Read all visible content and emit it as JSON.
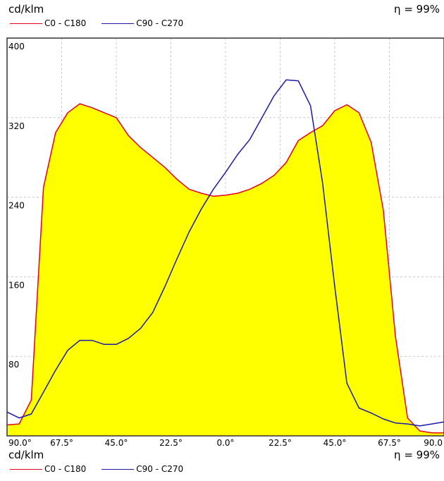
{
  "header": {
    "unit": "cd/klm",
    "efficiency": "η = 99%"
  },
  "footer": {
    "unit": "cd/klm",
    "efficiency": "η = 99%"
  },
  "legend": [
    {
      "label": "C0 - C180",
      "color": "#e8001c"
    },
    {
      "label": "C90 - C270",
      "color": "#1a1aa8"
    }
  ],
  "colors": {
    "fill": "#ffff00",
    "grid": "#c8c8c8",
    "frame": "#333333"
  },
  "chart_data": {
    "type": "line",
    "xlabel": "",
    "ylabel": "cd/klm",
    "x_range": [
      -90,
      90
    ],
    "ylim": [
      0,
      400
    ],
    "yticks": [
      80,
      160,
      240,
      320,
      400
    ],
    "xtick_labels": [
      "90.0°",
      "67.5°",
      "45.0°",
      "22.5°",
      "0.0°",
      "22.5°",
      "45.0°",
      "67.5°",
      "90.0"
    ],
    "grid": true,
    "x": [
      -90,
      -85,
      -80,
      -75,
      -70,
      -65,
      -60,
      -55,
      -50,
      -45,
      -40,
      -35,
      -30,
      -25,
      -20,
      -15,
      -10,
      -5,
      0,
      5,
      10,
      15,
      20,
      25,
      30,
      35,
      40,
      45,
      50,
      55,
      60,
      65,
      70,
      75,
      80,
      85,
      90
    ],
    "series": [
      {
        "name": "C0 - C180",
        "color": "#e8001c",
        "filled": true,
        "values": [
          11,
          12,
          36,
          250,
          305,
          325,
          334,
          330,
          325,
          320,
          302,
          290,
          280,
          270,
          258,
          248,
          244,
          241,
          242,
          244,
          248,
          254,
          262,
          275,
          297,
          305,
          312,
          327,
          333,
          325,
          295,
          227,
          100,
          18,
          5,
          3,
          3
        ]
      },
      {
        "name": "C90 - C270",
        "color": "#1a1aa8",
        "filled": false,
        "values": [
          24,
          18,
          22,
          44,
          66,
          86,
          96,
          96,
          92,
          92,
          98,
          108,
          124,
          150,
          178,
          205,
          228,
          248,
          265,
          283,
          298,
          320,
          342,
          358,
          357,
          332,
          254,
          150,
          53,
          28,
          23,
          17,
          13,
          12,
          10,
          12,
          14
        ]
      }
    ]
  }
}
